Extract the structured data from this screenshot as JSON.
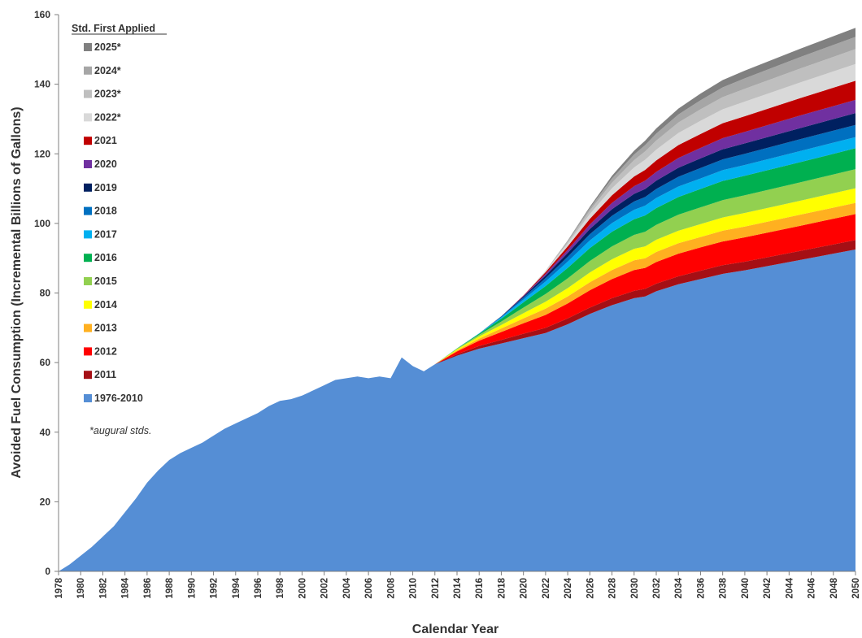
{
  "chart_data": {
    "type": "area",
    "stacked": true,
    "xlabel": "Calendar Year",
    "ylabel": "Avoided Fuel Consumption (Incremental Billions of Gallons)",
    "xlim": [
      1978,
      2050
    ],
    "ylim": [
      0,
      160
    ],
    "y_ticks": [
      0,
      20,
      40,
      60,
      80,
      100,
      120,
      140,
      160
    ],
    "x_ticks": [
      1978,
      1980,
      1982,
      1984,
      1986,
      1988,
      1990,
      1992,
      1994,
      1996,
      1998,
      2000,
      2002,
      2004,
      2006,
      2008,
      2010,
      2012,
      2014,
      2016,
      2018,
      2020,
      2022,
      2024,
      2026,
      2028,
      2030,
      2032,
      2034,
      2036,
      2038,
      2040,
      2042,
      2044,
      2046,
      2048,
      2050
    ],
    "grid": false,
    "legend_placement": "top-left",
    "legend_title": "Std. First Applied",
    "legend_note": "*augural stds.",
    "legend_order": [
      "2025*",
      "2024*",
      "2023*",
      "2022*",
      "2021",
      "2020",
      "2019",
      "2018",
      "2017",
      "2016",
      "2015",
      "2014",
      "2013",
      "2012",
      "2011",
      "1976-2010"
    ],
    "base_series": {
      "name": "1976-2010",
      "color": "#558ED5",
      "x": [
        1978,
        1979,
        1980,
        1981,
        1982,
        1983,
        1984,
        1985,
        1986,
        1987,
        1988,
        1989,
        1990,
        1991,
        1992,
        1993,
        1994,
        1995,
        1996,
        1997,
        1998,
        1999,
        2000,
        2001,
        2002,
        2003,
        2004,
        2005,
        2006,
        2007,
        2008,
        2009,
        2010,
        2011,
        2012,
        2013,
        2014,
        2016,
        2018,
        2020,
        2022,
        2024,
        2026,
        2028,
        2030,
        2031,
        2032,
        2034,
        2036,
        2038,
        2040,
        2045,
        2050
      ],
      "y": [
        0,
        2,
        4.5,
        7,
        10,
        13,
        17,
        21,
        25.5,
        29,
        32,
        34,
        35.5,
        37,
        39,
        41,
        42.5,
        44,
        45.5,
        47.5,
        49,
        49.5,
        50.5,
        52,
        53.5,
        55,
        55.5,
        56,
        55.5,
        56,
        55.5,
        61.5,
        59,
        57.5,
        59.5,
        61,
        62,
        64,
        65.5,
        67,
        68.5,
        71,
        74,
        76.5,
        78.5,
        79,
        80.5,
        82.5,
        84,
        85.5,
        86.5,
        89.5,
        92.5
      ]
    },
    "increment_years": [
      2012,
      2014,
      2016,
      2018,
      2020,
      2022,
      2024,
      2026,
      2028,
      2030,
      2031,
      2032,
      2034,
      2036,
      2038,
      2040,
      2045,
      2050
    ],
    "series": [
      {
        "name": "2011",
        "color": "#A50F15",
        "values": [
          0,
          0.4,
          0.8,
          1.0,
          1.3,
          1.5,
          1.7,
          1.8,
          2.0,
          2.1,
          2.2,
          2.2,
          2.3,
          2.4,
          2.5,
          2.5,
          2.6,
          2.7
        ]
      },
      {
        "name": "2012",
        "color": "#FF0000",
        "values": [
          0,
          0.8,
          1.5,
          2.3,
          3.0,
          3.7,
          4.3,
          5.0,
          5.5,
          6.0,
          6.0,
          6.2,
          6.5,
          6.7,
          6.8,
          7.0,
          7.2,
          7.5
        ]
      },
      {
        "name": "2013",
        "color": "#FFB020",
        "values": [
          0,
          0.3,
          0.6,
          1.0,
          1.4,
          1.8,
          2.0,
          2.3,
          2.6,
          2.8,
          2.8,
          2.9,
          3.0,
          3.0,
          3.1,
          3.1,
          3.2,
          3.2
        ]
      },
      {
        "name": "2014",
        "color": "#FFFF00",
        "values": [
          0,
          0.3,
          0.6,
          1.0,
          1.5,
          2.0,
          2.4,
          2.8,
          3.1,
          3.3,
          3.4,
          3.5,
          3.6,
          3.7,
          3.8,
          3.9,
          4.0,
          4.2
        ]
      },
      {
        "name": "2015",
        "color": "#92D050",
        "values": [
          0,
          0.2,
          0.5,
          1.0,
          1.6,
          2.2,
          2.8,
          3.3,
          3.7,
          4.0,
          4.2,
          4.3,
          4.6,
          4.8,
          5.0,
          5.1,
          5.3,
          5.5
        ]
      },
      {
        "name": "2016",
        "color": "#00B050",
        "values": [
          0,
          0.1,
          0.3,
          0.8,
          1.5,
          2.3,
          3.0,
          3.7,
          4.2,
          4.5,
          4.7,
          4.8,
          5.1,
          5.3,
          5.5,
          5.6,
          5.8,
          6.0
        ]
      },
      {
        "name": "2017",
        "color": "#00B0F0",
        "values": [
          0,
          0,
          0.1,
          0.4,
          0.8,
          1.3,
          1.8,
          2.2,
          2.5,
          2.7,
          2.8,
          2.9,
          3.0,
          3.0,
          3.1,
          3.1,
          3.2,
          3.2
        ]
      },
      {
        "name": "2018",
        "color": "#0070C0",
        "values": [
          0,
          0,
          0,
          0.2,
          0.6,
          1.0,
          1.4,
          1.8,
          2.1,
          2.4,
          2.5,
          2.6,
          2.8,
          3.0,
          3.1,
          3.2,
          3.4,
          3.5
        ]
      },
      {
        "name": "2019",
        "color": "#002060",
        "values": [
          0,
          0,
          0,
          0.1,
          0.3,
          0.7,
          1.1,
          1.5,
          1.9,
          2.2,
          2.3,
          2.4,
          2.6,
          2.8,
          2.9,
          3.0,
          3.2,
          3.4
        ]
      },
      {
        "name": "2020",
        "color": "#7030A0",
        "values": [
          0,
          0,
          0,
          0,
          0.2,
          0.5,
          0.9,
          1.3,
          1.8,
          2.2,
          2.4,
          2.5,
          2.8,
          3.0,
          3.2,
          3.3,
          3.6,
          3.8
        ]
      },
      {
        "name": "2021",
        "color": "#C00000",
        "values": [
          0,
          0,
          0,
          0,
          0.1,
          0.5,
          1.0,
          1.6,
          2.2,
          2.8,
          3.1,
          3.3,
          3.7,
          4.0,
          4.3,
          4.5,
          5.0,
          5.5
        ]
      },
      {
        "name": "2022*",
        "color": "#D9D9D9",
        "values": [
          0,
          0,
          0,
          0,
          0,
          0.3,
          0.8,
          1.4,
          2.0,
          2.6,
          2.9,
          3.1,
          3.5,
          3.8,
          4.0,
          4.2,
          4.5,
          4.8
        ]
      },
      {
        "name": "2023*",
        "color": "#BFBFBF",
        "values": [
          0,
          0,
          0,
          0,
          0,
          0.1,
          0.5,
          1.0,
          1.6,
          2.1,
          2.4,
          2.6,
          3.0,
          3.3,
          3.5,
          3.7,
          4.0,
          4.3
        ]
      },
      {
        "name": "2024*",
        "color": "#A6A6A6",
        "values": [
          0,
          0,
          0,
          0,
          0,
          0,
          0.3,
          0.7,
          1.2,
          1.6,
          1.8,
          2.0,
          2.3,
          2.6,
          2.8,
          3.0,
          3.3,
          3.5
        ]
      },
      {
        "name": "2025*",
        "color": "#808080",
        "values": [
          0,
          0,
          0,
          0,
          0,
          0,
          0.1,
          0.4,
          0.8,
          1.1,
          1.3,
          1.5,
          1.7,
          1.9,
          2.1,
          2.2,
          2.4,
          2.6
        ]
      }
    ]
  }
}
